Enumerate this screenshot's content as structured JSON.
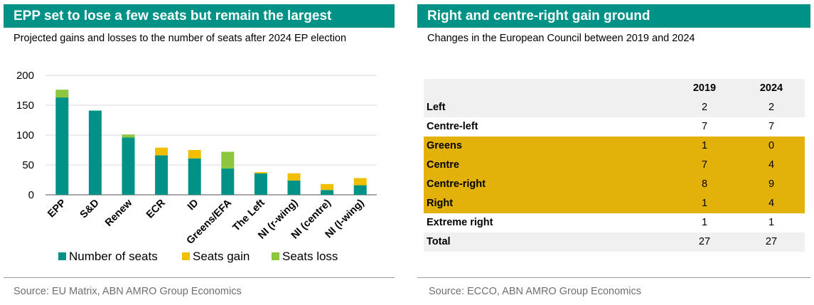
{
  "left": {
    "title": "EPP set to lose a few seats but remain the largest",
    "subtitle": "Projected gains and losses to the number of seats after 2024 EP election",
    "source": "Source: EU Matrix, ABN AMRO Group Economics"
  },
  "right": {
    "title": "Right and centre-right gain ground",
    "subtitle": "Changes in the European Council between 2019 and 2024",
    "source": "Source: ECCO, ABN AMRO Group Economics"
  },
  "colors": {
    "brand": "#009286",
    "number_of_seats": "#009286",
    "seats_gain": "#f2bf00",
    "seats_loss": "#8dc63f",
    "highlight_row": "#e2b20a"
  },
  "chart_data": {
    "type": "bar",
    "stacked": true,
    "title": "EPP set to lose a few seats but remain the largest",
    "subtitle": "Projected gains and losses to the number of seats after 2024 EP election",
    "categories": [
      "EPP",
      "S&D",
      "Renew",
      "ECR",
      "ID",
      "Greens/EFA",
      "The Left",
      "NI (r-wing)",
      "NI (centre)",
      "NI (l-wing)"
    ],
    "series": [
      {
        "name": "Number of seats",
        "values": [
          163,
          141,
          96,
          66,
          61,
          44,
          36,
          24,
          8,
          16
        ]
      },
      {
        "name": "Seats gain",
        "values": [
          0,
          0,
          0,
          13,
          14,
          0,
          2,
          12,
          10,
          12
        ]
      },
      {
        "name": "Seats loss",
        "values": [
          13,
          0,
          5,
          0,
          0,
          28,
          0,
          0,
          0,
          0
        ]
      }
    ],
    "yticks": [
      0,
      50,
      100,
      150,
      200
    ],
    "ylim": [
      0,
      200
    ],
    "grid": true,
    "legend": "bottom"
  },
  "table": {
    "columns": [
      "",
      "2019",
      "2024"
    ],
    "rows": [
      {
        "label": "Left",
        "v2019": "2",
        "v2024": "2",
        "shade": "grey"
      },
      {
        "label": "Centre-left",
        "v2019": "7",
        "v2024": "7",
        "shade": "white"
      },
      {
        "label": "Greens",
        "v2019": "1",
        "v2024": "0",
        "shade": "gold"
      },
      {
        "label": "Centre",
        "v2019": "7",
        "v2024": "4",
        "shade": "gold"
      },
      {
        "label": "Centre-right",
        "v2019": "8",
        "v2024": "9",
        "shade": "gold"
      },
      {
        "label": "Right",
        "v2019": "1",
        "v2024": "4",
        "shade": "gold"
      },
      {
        "label": "Extreme right",
        "v2019": "1",
        "v2024": "1",
        "shade": "white"
      },
      {
        "label": "Total",
        "v2019": "27",
        "v2024": "27",
        "shade": "grey"
      }
    ]
  }
}
